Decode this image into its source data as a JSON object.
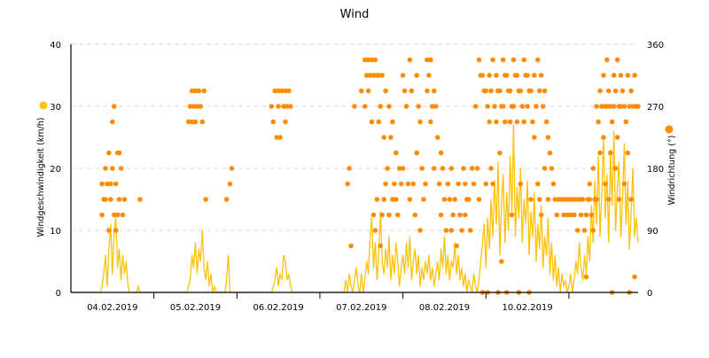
{
  "chart_data": {
    "type": "line+scatter",
    "title": "Wind",
    "y_left_label": "Windgeschwindigkeit (km/h)",
    "y_right_label": "Windrichtung (°)",
    "y_left_ticks": [
      "0",
      "10",
      "20",
      "30",
      "40"
    ],
    "y_left_range": [
      0,
      40
    ],
    "y_right_ticks": [
      "0",
      "90",
      "180",
      "270",
      "360"
    ],
    "y_right_range": [
      0,
      360
    ],
    "x_tick_labels": [
      "04.02.2019",
      "05.02.2019",
      "06.02.2019",
      "07.02.2019",
      "08.02.2019",
      "10.02.2019"
    ],
    "x_start": "2019-02-04 00:00",
    "grid": "horizontal dashed",
    "colors": {
      "speed": "#ffc107",
      "direction": "#ff8c00",
      "grid": "#d9d9d9"
    },
    "series": [
      {
        "name": "Windgeschwindigkeit (km/h)",
        "type": "line",
        "interval_minutes": 30,
        "values": [
          0,
          0,
          0,
          0,
          0,
          0,
          0,
          0,
          0,
          0,
          0,
          0,
          0,
          0,
          0,
          0,
          0,
          0,
          1,
          3,
          6,
          1,
          7,
          11,
          3,
          10,
          12,
          4,
          7,
          2,
          6,
          3,
          5,
          1,
          0,
          0,
          0,
          0,
          0,
          1,
          0,
          0,
          0,
          0,
          0,
          0,
          0,
          0,
          0,
          0,
          0,
          0,
          0,
          0,
          0,
          0,
          0,
          0,
          0,
          0,
          0,
          0,
          0,
          0,
          0,
          0,
          0,
          0,
          1,
          2,
          6,
          4,
          8,
          3,
          7,
          5,
          10,
          4,
          2,
          5,
          1,
          3,
          0,
          1,
          0,
          0,
          0,
          0,
          0,
          0,
          2,
          6,
          0,
          0,
          0,
          0,
          0,
          0,
          0,
          0,
          0,
          0,
          0,
          0,
          0,
          0,
          0,
          0,
          0,
          0,
          0,
          0,
          0,
          0,
          0,
          0,
          0,
          1,
          2,
          4,
          1,
          3,
          2,
          6,
          5,
          2,
          3,
          1,
          0,
          0,
          0,
          0,
          0,
          0,
          0,
          0,
          0,
          0,
          0,
          0,
          0,
          0,
          0,
          0,
          0,
          0,
          0,
          0,
          0,
          0,
          0,
          0,
          0,
          0,
          0,
          0,
          0,
          0,
          0,
          2,
          0,
          3,
          1,
          0,
          2,
          4,
          1,
          0,
          3,
          0,
          2,
          5,
          3,
          9,
          12,
          4,
          8,
          2,
          6,
          13,
          5,
          3,
          7,
          4,
          9,
          2,
          6,
          3,
          8,
          5,
          1,
          4,
          6,
          3,
          8,
          4,
          9,
          2,
          5,
          7,
          3,
          6,
          1,
          4,
          2,
          5,
          3,
          6,
          2,
          4,
          1,
          3,
          5,
          2,
          7,
          4,
          9,
          3,
          6,
          2,
          5,
          4,
          8,
          3,
          6,
          2,
          4,
          1,
          3,
          0,
          2,
          1,
          0,
          3,
          1,
          0,
          2,
          5,
          8,
          11,
          4,
          12,
          7,
          15,
          9,
          18,
          11,
          21,
          6,
          14,
          19,
          8,
          16,
          10,
          22,
          13,
          27,
          9,
          17,
          12,
          20,
          8,
          15,
          11,
          18,
          6,
          13,
          9,
          16,
          5,
          11,
          7,
          14,
          4,
          9,
          6,
          12,
          3,
          8,
          2,
          6,
          1,
          4,
          0,
          3,
          1,
          2,
          0,
          1,
          3,
          0,
          2,
          5,
          3,
          8,
          4,
          2,
          6,
          3,
          9,
          5,
          14,
          8,
          18,
          11,
          22,
          9,
          16,
          25,
          12,
          19,
          8,
          23,
          14,
          26,
          10,
          17,
          21,
          9,
          15,
          24,
          11,
          18,
          7,
          13,
          20,
          9,
          12,
          8
        ]
      },
      {
        "name": "Windrichtung (°)",
        "type": "scatter",
        "interval_minutes": 60,
        "values": [
          null,
          null,
          null,
          null,
          null,
          null,
          null,
          null,
          null,
          [
            112.5,
            135,
            157.5
          ],
          [
            135,
            157.5,
            180
          ],
          [
            90,
            135,
            202.5,
            157.5
          ],
          [
            247.5,
            270,
            180,
            112.5
          ],
          [
            157.5,
            202.5,
            90,
            112.5
          ],
          [
            135,
            180,
            202.5
          ],
          [
            112.5,
            135
          ],
          null,
          null,
          null,
          null,
          [
            135
          ],
          null,
          null,
          null,
          null,
          null,
          null,
          null,
          null,
          null,
          null,
          null,
          null,
          null,
          [
            247.5,
            270
          ],
          [
            247.5,
            270,
            292.5
          ],
          [
            247.5,
            270,
            292.5
          ],
          [
            292.5,
            270
          ],
          [
            247.5,
            292.5
          ],
          [
            135
          ],
          null,
          null,
          null,
          null,
          null,
          [
            135
          ],
          [
            157.5,
            180
          ],
          null,
          null,
          null,
          null,
          null,
          null,
          null,
          null,
          null,
          null,
          null,
          [
            270,
            247.5
          ],
          [
            292.5,
            225
          ],
          [
            292.5,
            225,
            270
          ],
          [
            292.5,
            270
          ],
          [
            292.5,
            270,
            247.5
          ],
          [
            292.5,
            270
          ],
          null,
          null,
          null,
          null,
          null,
          null,
          null,
          null,
          null,
          null,
          null,
          null,
          null,
          null,
          null,
          null,
          [
            157.5,
            180
          ],
          [
            67.5
          ],
          [
            270
          ],
          null,
          [
            292.5
          ],
          [
            337.5,
            315,
            270
          ],
          [
            337.5,
            315,
            292.5
          ],
          [
            337.5,
            315,
            247.5,
            112.5
          ],
          [
            337.5,
            315,
            90,
            135
          ],
          [
            315,
            270,
            247.5,
            67.5
          ],
          [
            315,
            225,
            112.5,
            135
          ],
          [
            292.5,
            180,
            157.5
          ],
          [
            270,
            225,
            112.5
          ],
          [
            247.5,
            157.5,
            135
          ],
          [
            202.5,
            112.5,
            135
          ],
          [
            180,
            157.5
          ],
          [
            315,
            292.5,
            180
          ],
          [
            270,
            157.5
          ],
          [
            337.5,
            292.5,
            135
          ],
          [
            157.5,
            112.5
          ],
          [
            315,
            270,
            202.5
          ],
          [
            247.5,
            180,
            90
          ],
          [
            135,
            157.5
          ],
          [
            337.5,
            315,
            292.5
          ],
          [
            337.5,
            270,
            247.5
          ],
          [
            292.5,
            270,
            180
          ],
          [
            225,
            157.5
          ],
          [
            202.5,
            180,
            112.5
          ],
          [
            135,
            90
          ],
          [
            157.5,
            135
          ],
          [
            180,
            112.5,
            90
          ],
          [
            135,
            67.5
          ],
          [
            157.5,
            112.5
          ],
          [
            90,
            180
          ],
          [
            157.5,
            135,
            112.5
          ],
          [
            135,
            90
          ],
          [
            180,
            157.5
          ],
          [
            270,
            180
          ],
          [
            337.5,
            315,
            135
          ],
          [
            315,
            292.5,
            0
          ],
          [
            292.5,
            270,
            157.5,
            0
          ],
          [
            315,
            292.5,
            247.5,
            180
          ],
          [
            337.5,
            270,
            157.5
          ],
          [
            315,
            292.5,
            247.5,
            0
          ],
          [
            292.5,
            270,
            202.5,
            45
          ],
          [
            337.5,
            315,
            270,
            247.5
          ],
          [
            315,
            292.5,
            0
          ],
          [
            292.5,
            270,
            247.5,
            112.5
          ],
          [
            337.5,
            315,
            270
          ],
          [
            315,
            292.5,
            247.5,
            0
          ],
          [
            292.5,
            270,
            157.5
          ],
          [
            337.5,
            315,
            247.5
          ],
          [
            315,
            292.5,
            270,
            0
          ],
          [
            292.5,
            247.5,
            135
          ],
          [
            315,
            270,
            225
          ],
          [
            337.5,
            292.5,
            157.5,
            135
          ],
          [
            315,
            270,
            112.5
          ],
          [
            292.5,
            247.5,
            180
          ],
          [
            225,
            202.5,
            135
          ],
          [
            180,
            157.5
          ],
          [
            135,
            112.5
          ],
          [
            135
          ],
          [
            135,
            112.5
          ],
          [
            135,
            112.5
          ],
          [
            135,
            112.5
          ],
          [
            135,
            112.5
          ],
          [
            135,
            90
          ],
          [
            135,
            112.5
          ],
          [
            135,
            90
          ],
          [
            112.5,
            135,
            22.5
          ],
          [
            135,
            112.5,
            157.5
          ],
          [
            180,
            135,
            90
          ],
          [
            270,
            247.5,
            135
          ],
          [
            292.5,
            270,
            202.5
          ],
          [
            315,
            270,
            225,
            157.5
          ],
          [
            337.5,
            292.5,
            270,
            135
          ],
          [
            270,
            247.5,
            202.5,
            0
          ],
          [
            315,
            292.5,
            270,
            180
          ],
          [
            337.5,
            270,
            225,
            135
          ],
          [
            315,
            292.5,
            270
          ],
          [
            270,
            247.5,
            157.5
          ],
          [
            315,
            270,
            202.5,
            0
          ],
          [
            292.5,
            270,
            135
          ],
          [
            315,
            270,
            22.5
          ],
          [
            270
          ]
        ]
      }
    ]
  }
}
